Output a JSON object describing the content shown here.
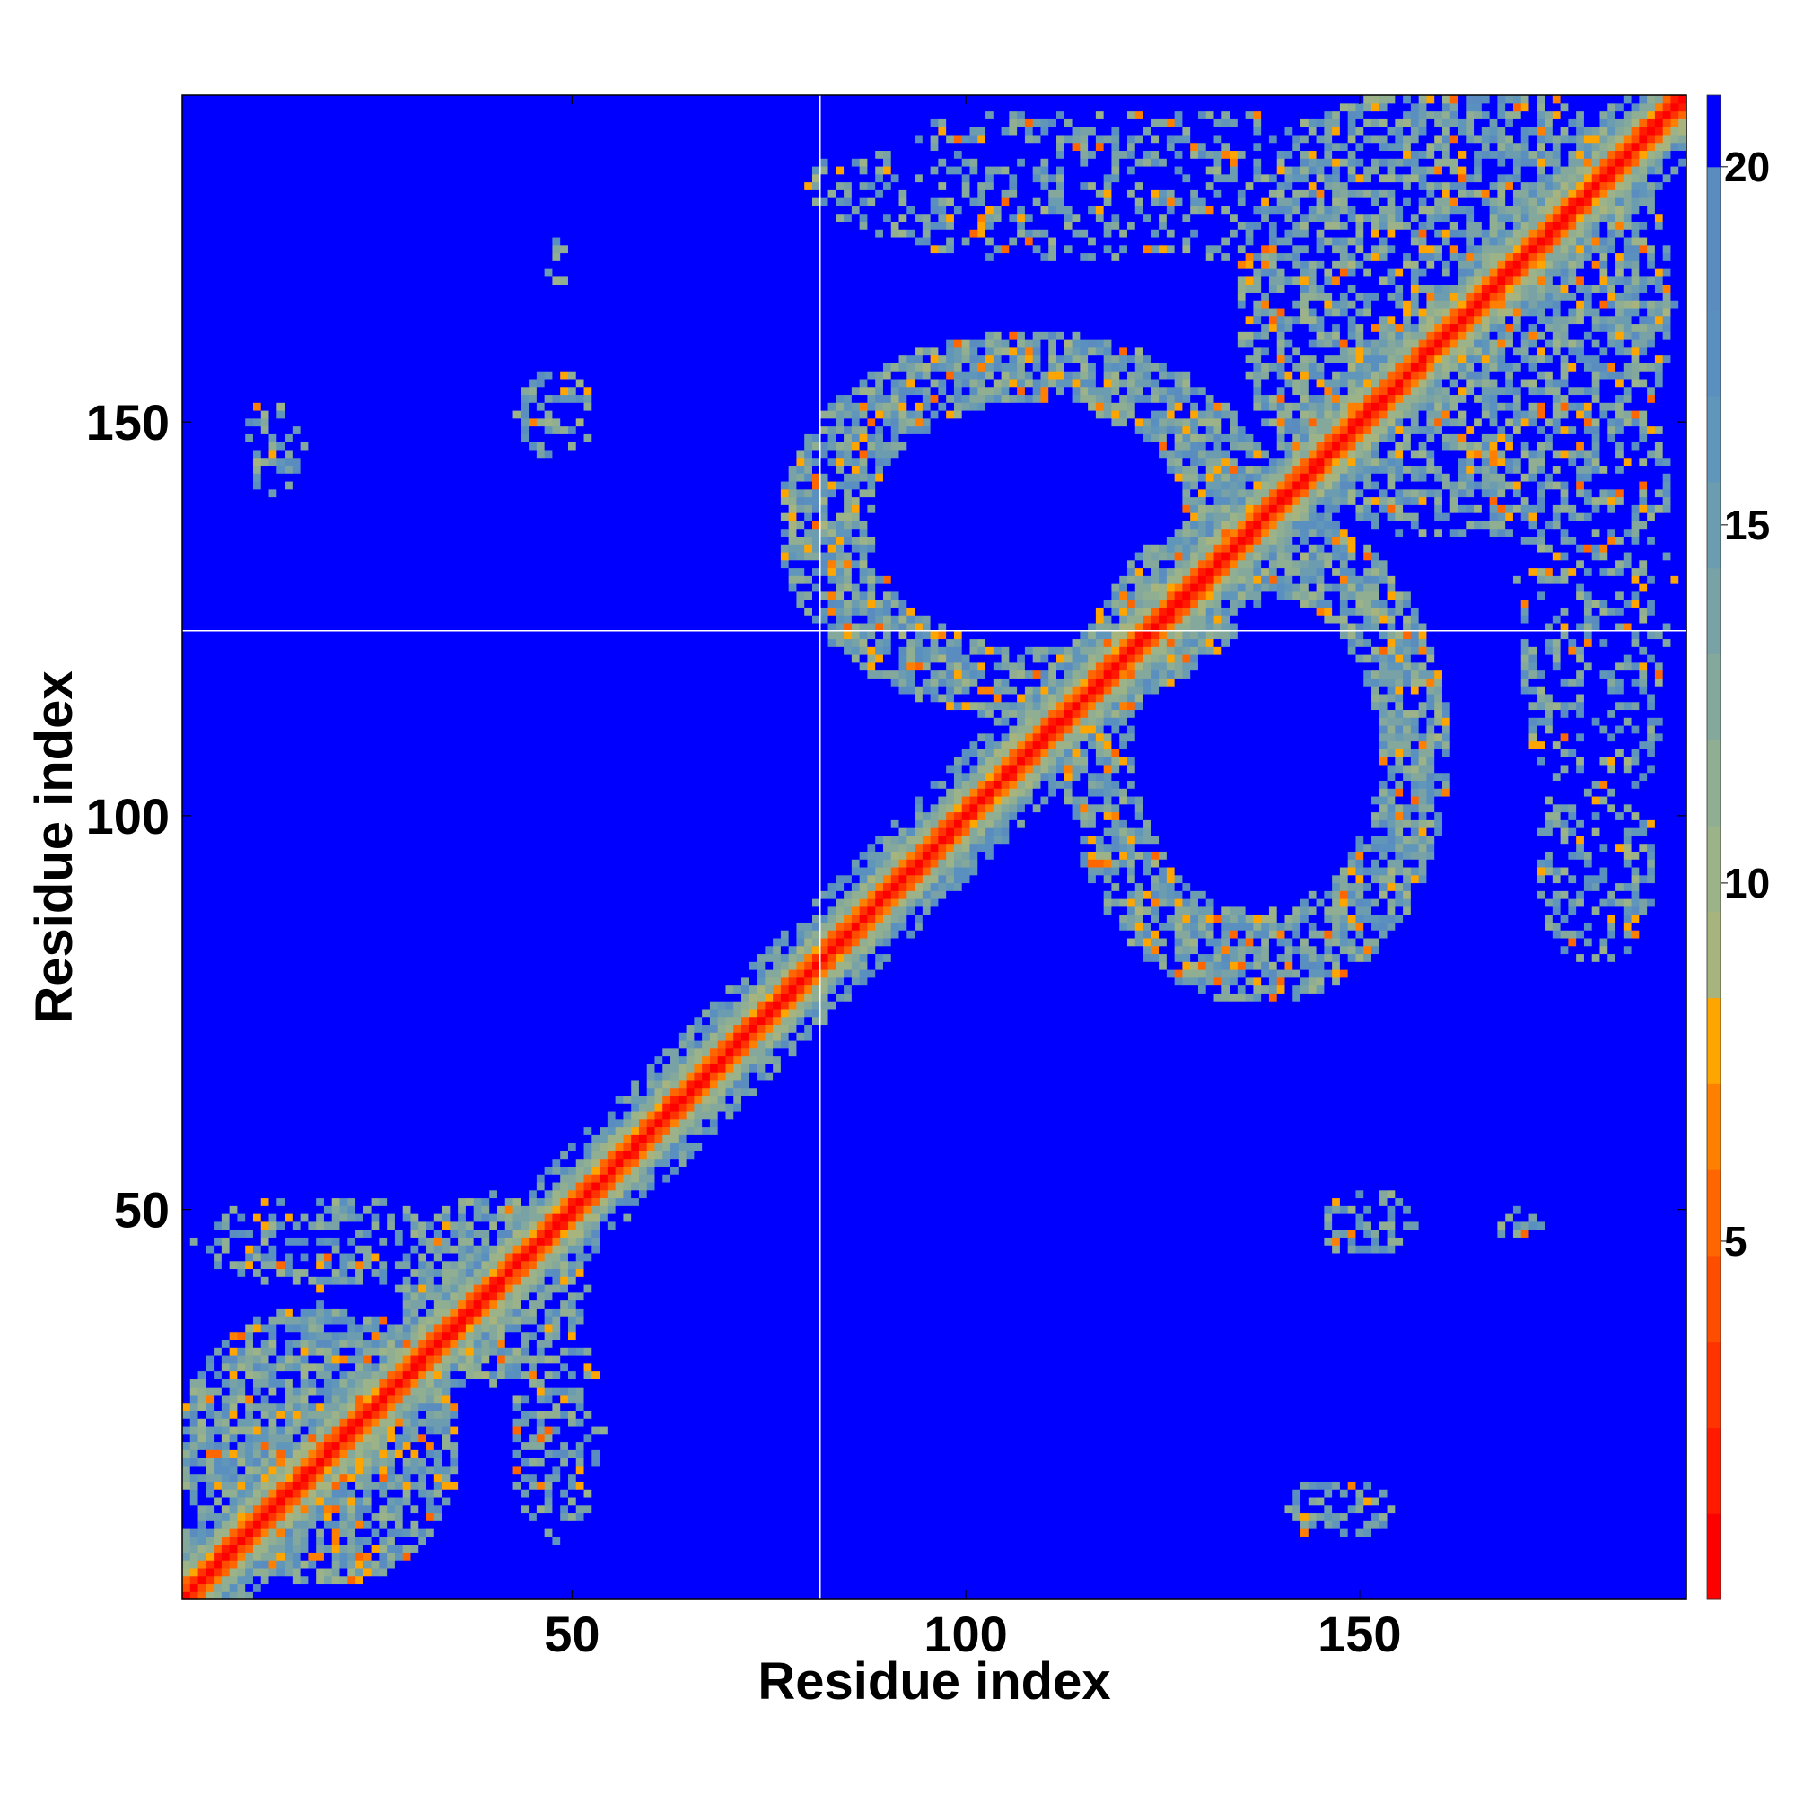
{
  "chart_data": {
    "type": "heatmap",
    "title": "",
    "xlabel": "Residue index",
    "ylabel": "Residue index",
    "xlim": [
      1,
      191
    ],
    "ylim": [
      1,
      191
    ],
    "x_ticks": [
      50,
      100,
      150
    ],
    "y_ticks": [
      50,
      100,
      150
    ],
    "colorbar": {
      "range": [
        0,
        21
      ],
      "ticks": [
        5,
        10,
        15,
        20
      ],
      "levels": [
        {
          "from": 0,
          "to": 1.2,
          "color": "#ff0000"
        },
        {
          "from": 1.2,
          "to": 2.4,
          "color": "#ff1a00"
        },
        {
          "from": 2.4,
          "to": 3.6,
          "color": "#ff3300"
        },
        {
          "from": 3.6,
          "to": 4.8,
          "color": "#ff4d00"
        },
        {
          "from": 4.8,
          "to": 6.0,
          "color": "#ff6600"
        },
        {
          "from": 6.0,
          "to": 7.2,
          "color": "#ff8000"
        },
        {
          "from": 7.2,
          "to": 8.4,
          "color": "#ffa500"
        },
        {
          "from": 8.4,
          "to": 9.6,
          "color": "#a8b47e"
        },
        {
          "from": 9.6,
          "to": 10.8,
          "color": "#9cb288"
        },
        {
          "from": 10.8,
          "to": 12.0,
          "color": "#90ae92"
        },
        {
          "from": 12.0,
          "to": 13.2,
          "color": "#84a89c"
        },
        {
          "from": 13.2,
          "to": 14.4,
          "color": "#78a2a6"
        },
        {
          "from": 14.4,
          "to": 15.6,
          "color": "#6c9cb0"
        },
        {
          "from": 15.6,
          "to": 16.8,
          "color": "#6096ba"
        },
        {
          "from": 16.8,
          "to": 18.0,
          "color": "#5a90c0"
        },
        {
          "from": 18.0,
          "to": 20.0,
          "color": "#5a8cc0"
        },
        {
          "from": 20.0,
          "to": 21.0,
          "color": "#0000ff"
        }
      ]
    },
    "background_value": 21,
    "separator_lines": {
      "x": 82,
      "y": 124
    },
    "regions": [
      {
        "name": "diagonal",
        "kind": "diagonal",
        "from": 1,
        "to": 191
      },
      {
        "kind": "blob",
        "cx": 18,
        "cy": 20,
        "rx": 18,
        "ry": 18,
        "density": 0.75
      },
      {
        "kind": "blob",
        "cx": 40,
        "cy": 40,
        "rx": 12,
        "ry": 12,
        "density": 0.6
      },
      {
        "kind": "blob",
        "cx": 18,
        "cy": 46,
        "rx": 16,
        "ry": 6,
        "density": 0.45
      },
      {
        "kind": "blob",
        "cx": 48,
        "cy": 22,
        "rx": 6,
        "ry": 14,
        "density": 0.45
      },
      {
        "kind": "blob",
        "cx": 48,
        "cy": 22,
        "rx": 5,
        "ry": 3,
        "density": 0.6
      },
      {
        "kind": "ring",
        "cx": 108,
        "cy": 137,
        "rx": 26,
        "ry": 20,
        "width": 7,
        "density": 0.75
      },
      {
        "kind": "ring",
        "cx": 137,
        "cy": 108,
        "rx": 20,
        "ry": 26,
        "width": 7,
        "density": 0.75
      },
      {
        "kind": "blob",
        "cx": 162,
        "cy": 165,
        "rx": 28,
        "ry": 30,
        "density": 0.6
      },
      {
        "kind": "blob",
        "cx": 120,
        "cy": 180,
        "rx": 40,
        "ry": 10,
        "density": 0.35
      },
      {
        "kind": "blob",
        "cx": 180,
        "cy": 130,
        "rx": 10,
        "ry": 35,
        "density": 0.35
      },
      {
        "kind": "blob",
        "cx": 180,
        "cy": 95,
        "rx": 8,
        "ry": 14,
        "density": 0.4
      },
      {
        "kind": "blob",
        "cx": 12,
        "cy": 147,
        "rx": 4,
        "ry": 6,
        "density": 0.5
      },
      {
        "kind": "blob",
        "cx": 48,
        "cy": 151,
        "rx": 5,
        "ry": 6,
        "density": 0.5
      },
      {
        "kind": "blob",
        "cx": 48,
        "cy": 170,
        "rx": 2,
        "ry": 3,
        "density": 0.5
      },
      {
        "kind": "blob",
        "cx": 151,
        "cy": 48,
        "rx": 6,
        "ry": 5,
        "density": 0.5
      },
      {
        "kind": "blob",
        "cx": 147,
        "cy": 12,
        "rx": 7,
        "ry": 4,
        "density": 0.5
      },
      {
        "kind": "blob",
        "cx": 170,
        "cy": 48,
        "rx": 3,
        "ry": 2,
        "density": 0.5
      }
    ]
  }
}
